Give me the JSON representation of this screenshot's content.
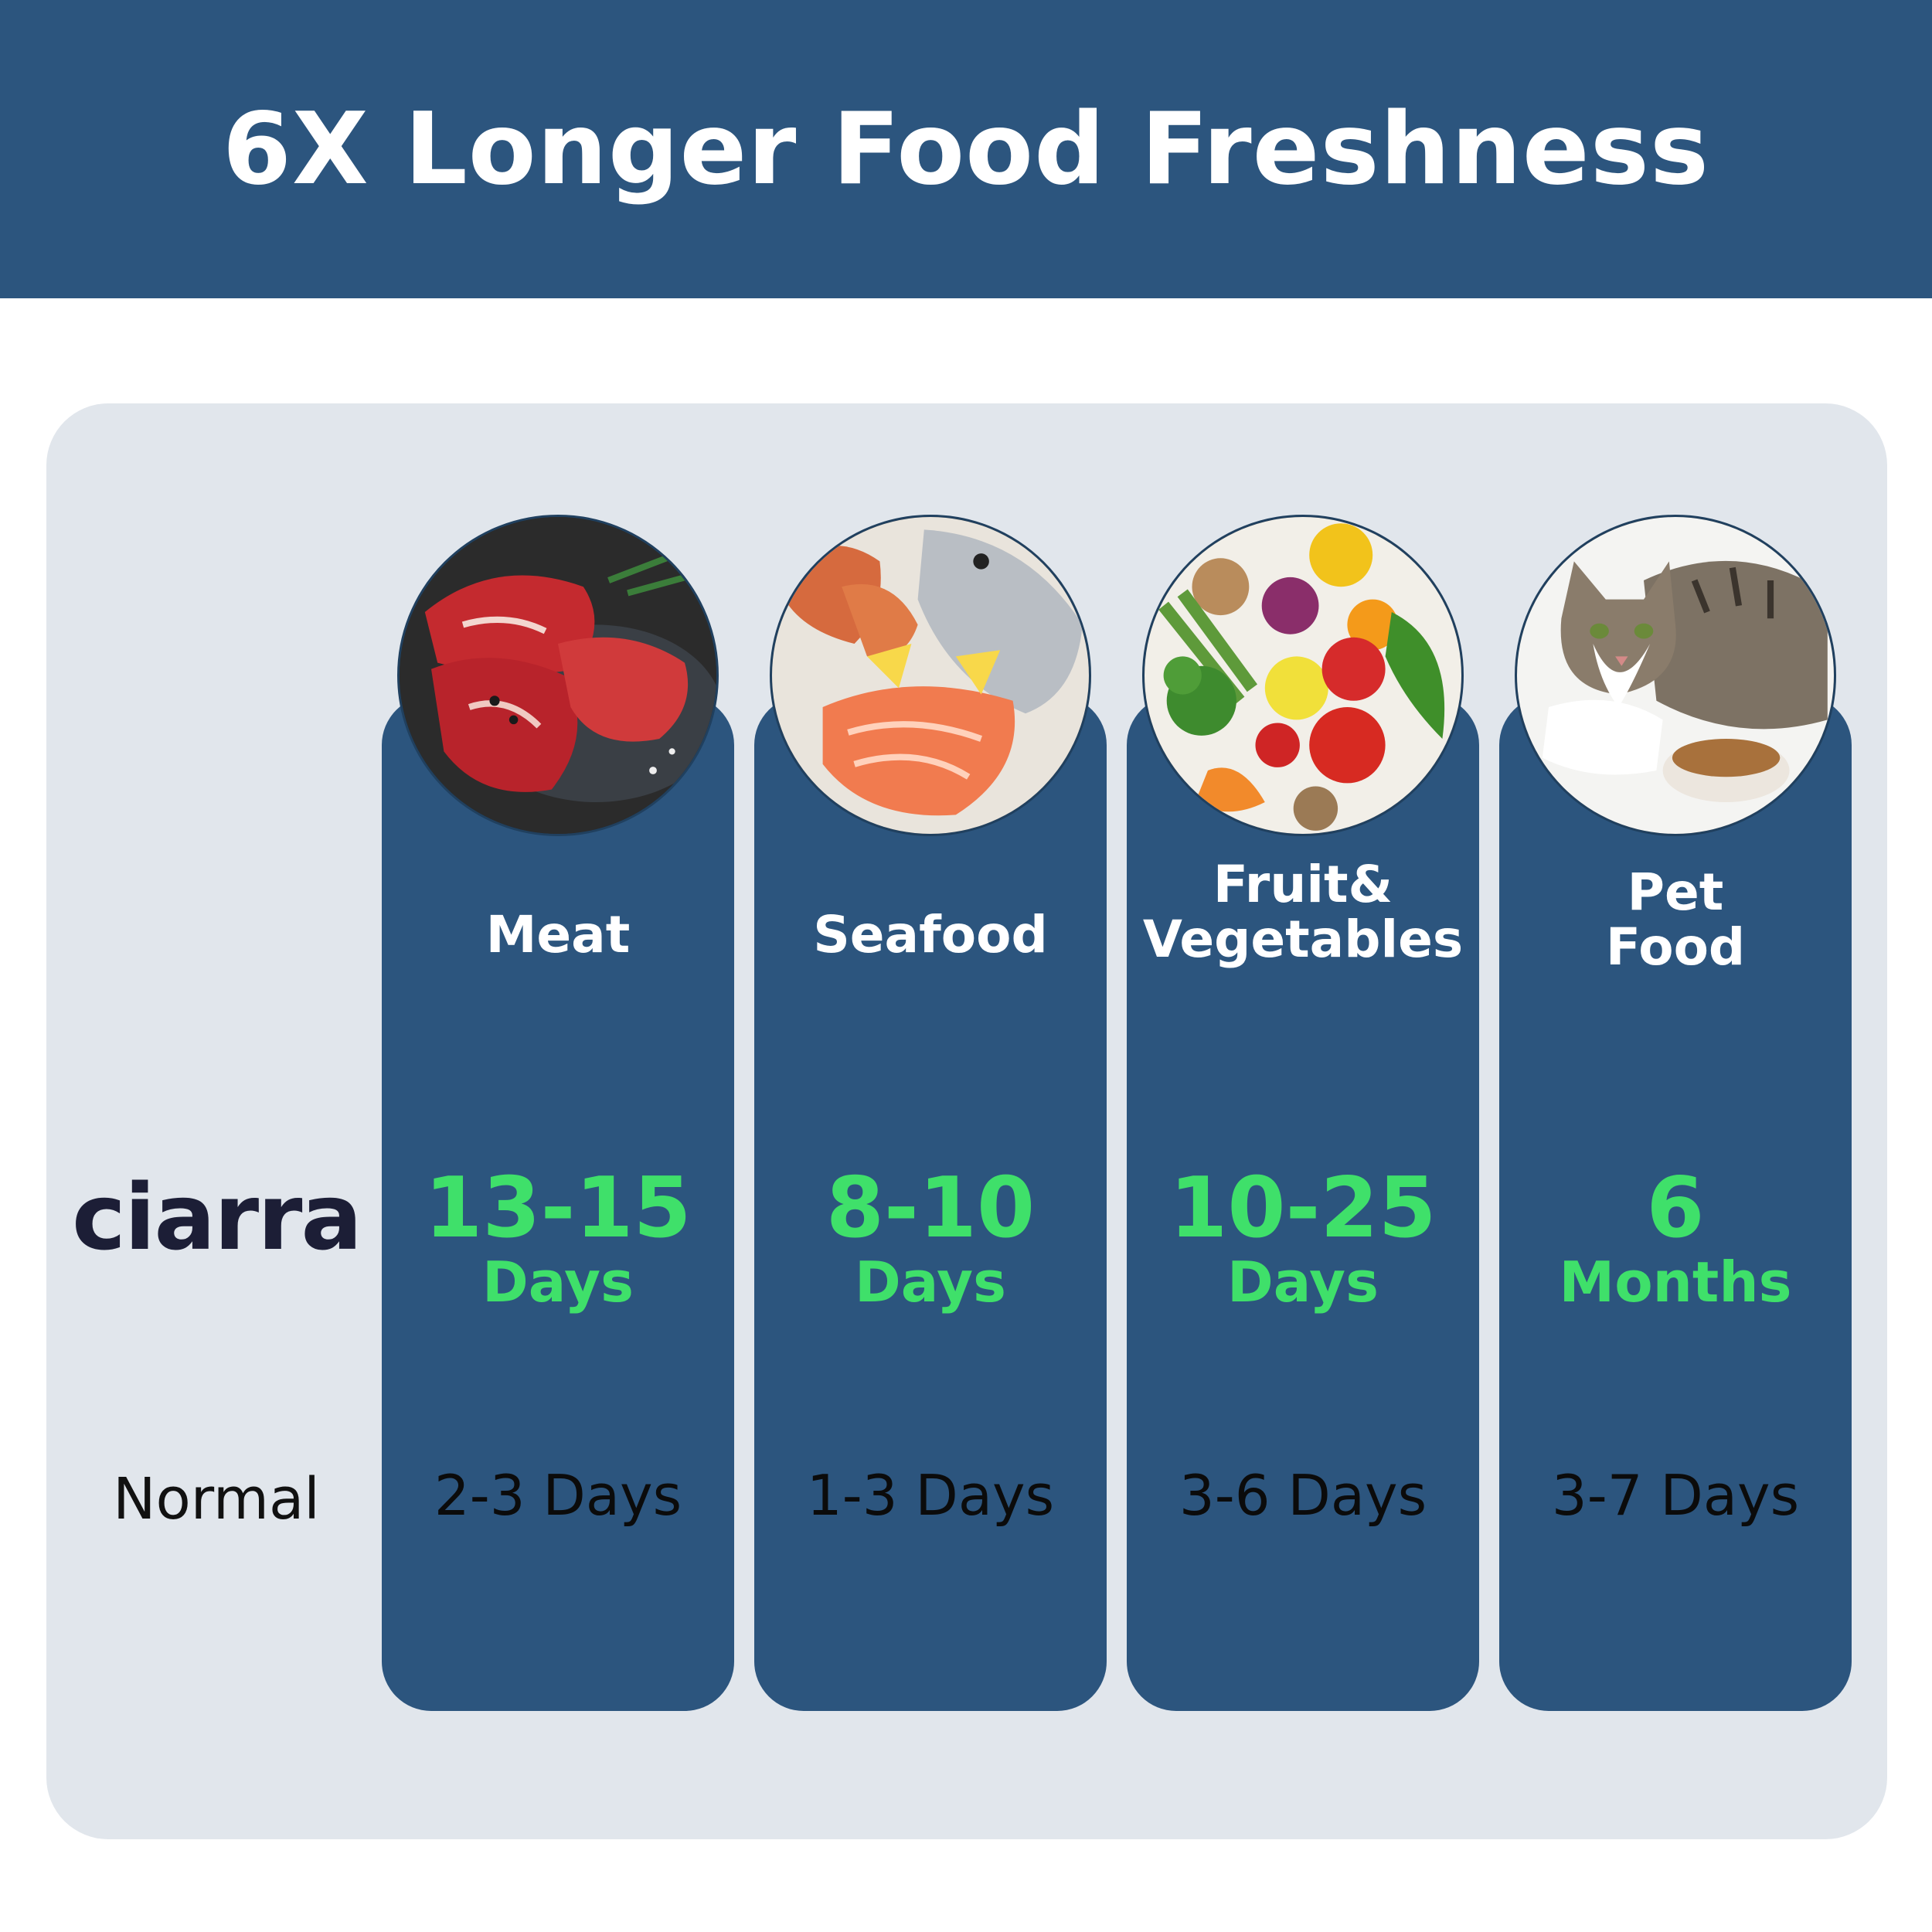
{
  "header": {
    "title": "6X Longer Food Freshness"
  },
  "rows": {
    "brand": "ciarra",
    "normal_label": "Normal"
  },
  "colors": {
    "navy": "#2c557e",
    "green": "#3fe06a",
    "panel": "#e1e6ec"
  },
  "categories": [
    {
      "line1": "Meat",
      "line2": "",
      "ciarra_num": "13-15",
      "ciarra_unit": "Days",
      "normal": "2-3 Days",
      "image": "meat-photo"
    },
    {
      "line1": "Seafood",
      "line2": "",
      "ciarra_num": "8-10",
      "ciarra_unit": "Days",
      "normal": "1-3 Days",
      "image": "seafood-photo"
    },
    {
      "line1": "Fruit&",
      "line2": "Vegetables",
      "ciarra_num": "10-25",
      "ciarra_unit": "Days",
      "normal": "3-6 Days",
      "image": "produce-photo"
    },
    {
      "line1": "Pet",
      "line2": "Food",
      "ciarra_num": "6",
      "ciarra_unit": "Months",
      "normal": "3-7 Days",
      "image": "cat-photo"
    }
  ]
}
